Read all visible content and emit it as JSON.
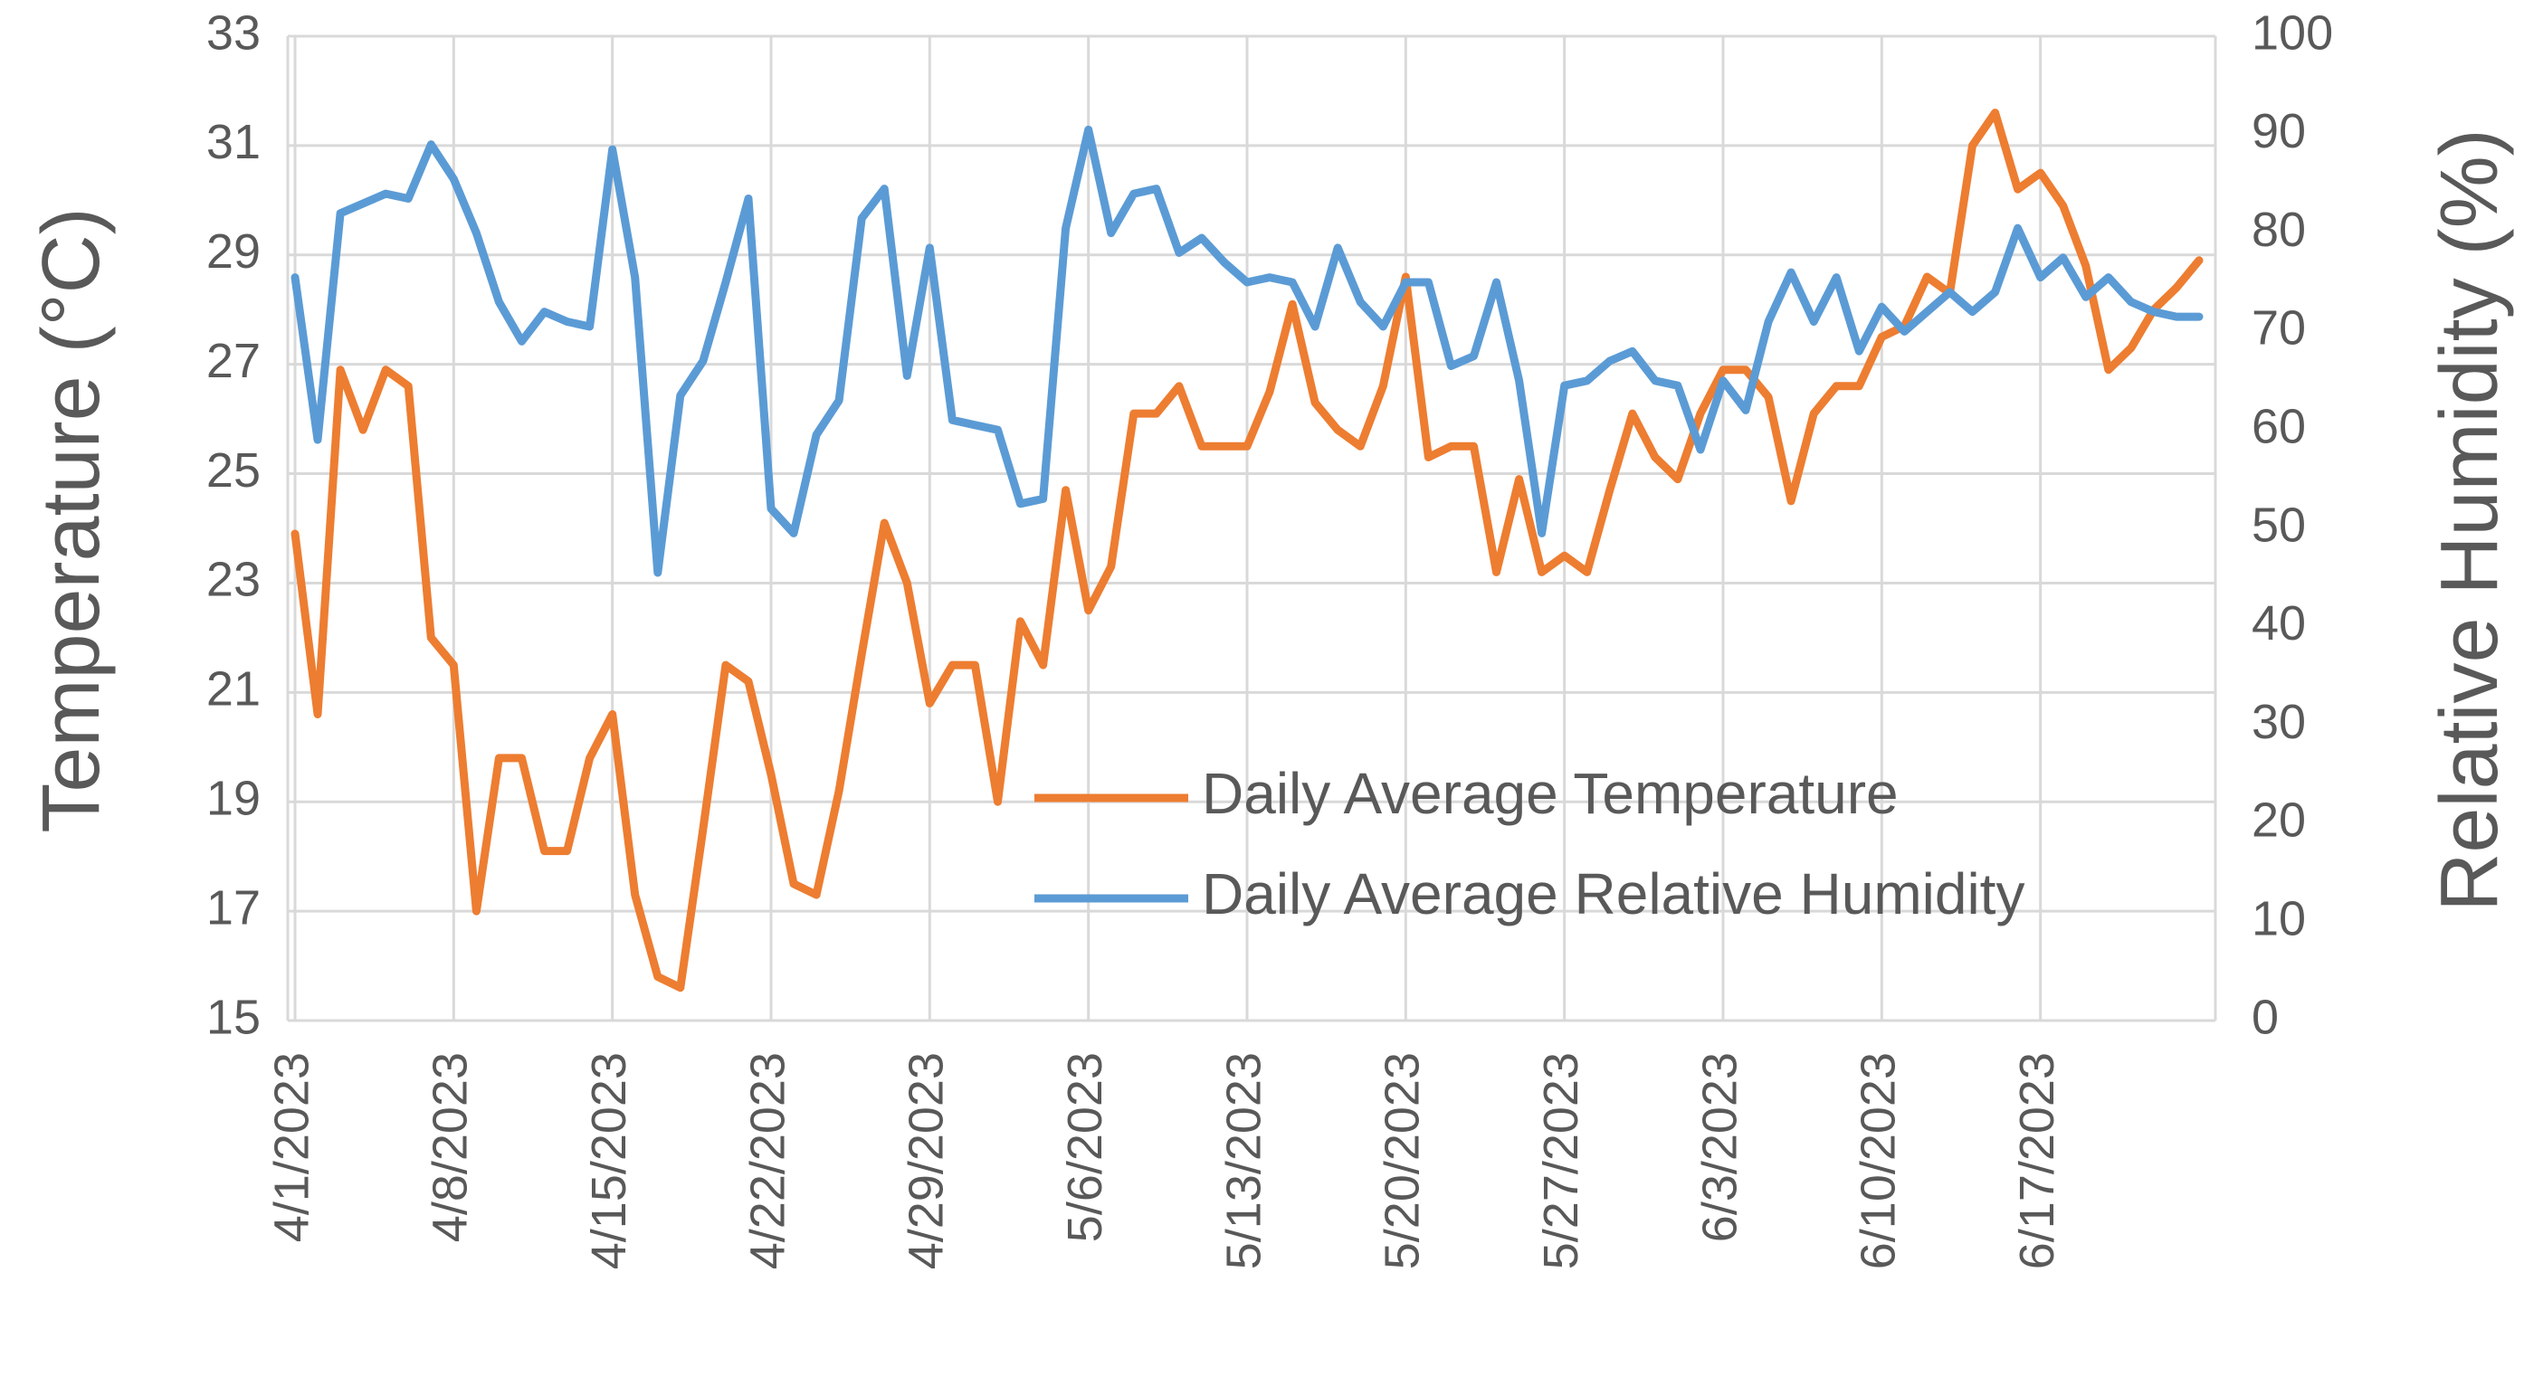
{
  "chart_data": {
    "type": "line",
    "title": "",
    "xlabel": "",
    "ylabel": "Temperature  (°C)",
    "y2label": "Relative Humidity (%)",
    "ylim": [
      15,
      33
    ],
    "y2lim": [
      0,
      100
    ],
    "yticks": [
      "15",
      "17",
      "19",
      "21",
      "23",
      "25",
      "27",
      "29",
      "31",
      "33"
    ],
    "y2ticks": [
      "0",
      "10",
      "20",
      "30",
      "40",
      "50",
      "60",
      "70",
      "80",
      "90",
      "100"
    ],
    "x_tick_labels": [
      "4/1/2023",
      "4/8/2023",
      "4/15/2023",
      "4/22/2023",
      "4/29/2023",
      "5/6/2023",
      "5/13/2023",
      "5/20/2023",
      "5/27/2023",
      "6/3/2023",
      "6/10/2023",
      "6/17/2023"
    ],
    "x_tick_day_index": [
      0,
      7,
      14,
      21,
      28,
      35,
      42,
      49,
      56,
      63,
      70,
      77
    ],
    "x_day_count": 85,
    "legend_position": "lower-right",
    "series": [
      {
        "name": "Daily Average Temperature",
        "axis": "left",
        "color": "#ED7D31",
        "values": [
          23.9,
          20.6,
          26.9,
          25.8,
          26.9,
          26.6,
          22.0,
          21.5,
          17.0,
          19.8,
          19.8,
          18.1,
          18.1,
          19.8,
          20.6,
          17.3,
          15.8,
          15.6,
          18.5,
          21.5,
          21.2,
          19.5,
          17.5,
          17.3,
          19.2,
          21.7,
          24.1,
          23.0,
          20.8,
          21.5,
          21.5,
          19.0,
          22.3,
          21.5,
          24.7,
          22.5,
          23.3,
          26.1,
          26.1,
          26.6,
          25.5,
          25.5,
          25.5,
          26.5,
          28.1,
          26.3,
          25.8,
          25.5,
          26.6,
          28.6,
          25.3,
          25.5,
          25.5,
          23.2,
          24.9,
          23.2,
          23.5,
          23.2,
          24.7,
          26.1,
          25.3,
          24.9,
          26.1,
          26.9,
          26.9,
          26.4,
          24.5,
          26.1,
          26.6,
          26.6,
          27.5,
          27.7,
          28.6,
          28.3,
          31.0,
          31.6,
          30.2,
          30.5,
          29.9,
          28.8,
          26.9,
          27.3,
          28.0,
          28.4,
          28.9
        ]
      },
      {
        "name": "Daily Average Relative Humidity",
        "axis": "right",
        "color": "#5B9BD5",
        "values": [
          75.5,
          59.0,
          82.0,
          83.0,
          84.0,
          83.5,
          89.0,
          85.5,
          80.0,
          73.0,
          69.0,
          72.0,
          71.0,
          70.5,
          88.5,
          75.5,
          45.5,
          63.5,
          67.0,
          75.0,
          83.5,
          52.0,
          49.5,
          59.5,
          63.0,
          81.5,
          84.5,
          65.5,
          78.5,
          61.0,
          60.5,
          60.0,
          52.5,
          53.0,
          80.5,
          90.5,
          80.0,
          84.0,
          84.5,
          78.0,
          79.5,
          77.0,
          75.0,
          75.5,
          75.0,
          70.5,
          78.5,
          73.0,
          70.5,
          75.0,
          75.0,
          66.5,
          67.5,
          75.0,
          65.0,
          49.5,
          64.5,
          65.0,
          67.0,
          68.0,
          65.0,
          64.5,
          58.0,
          65.0,
          62.0,
          71.0,
          76.0,
          71.0,
          75.5,
          68.0,
          72.5,
          70.0,
          72.0,
          74.0,
          72.0,
          74.0,
          80.5,
          75.5,
          77.5,
          73.5,
          75.5,
          73.0,
          72.0,
          71.5,
          71.5
        ]
      }
    ]
  }
}
